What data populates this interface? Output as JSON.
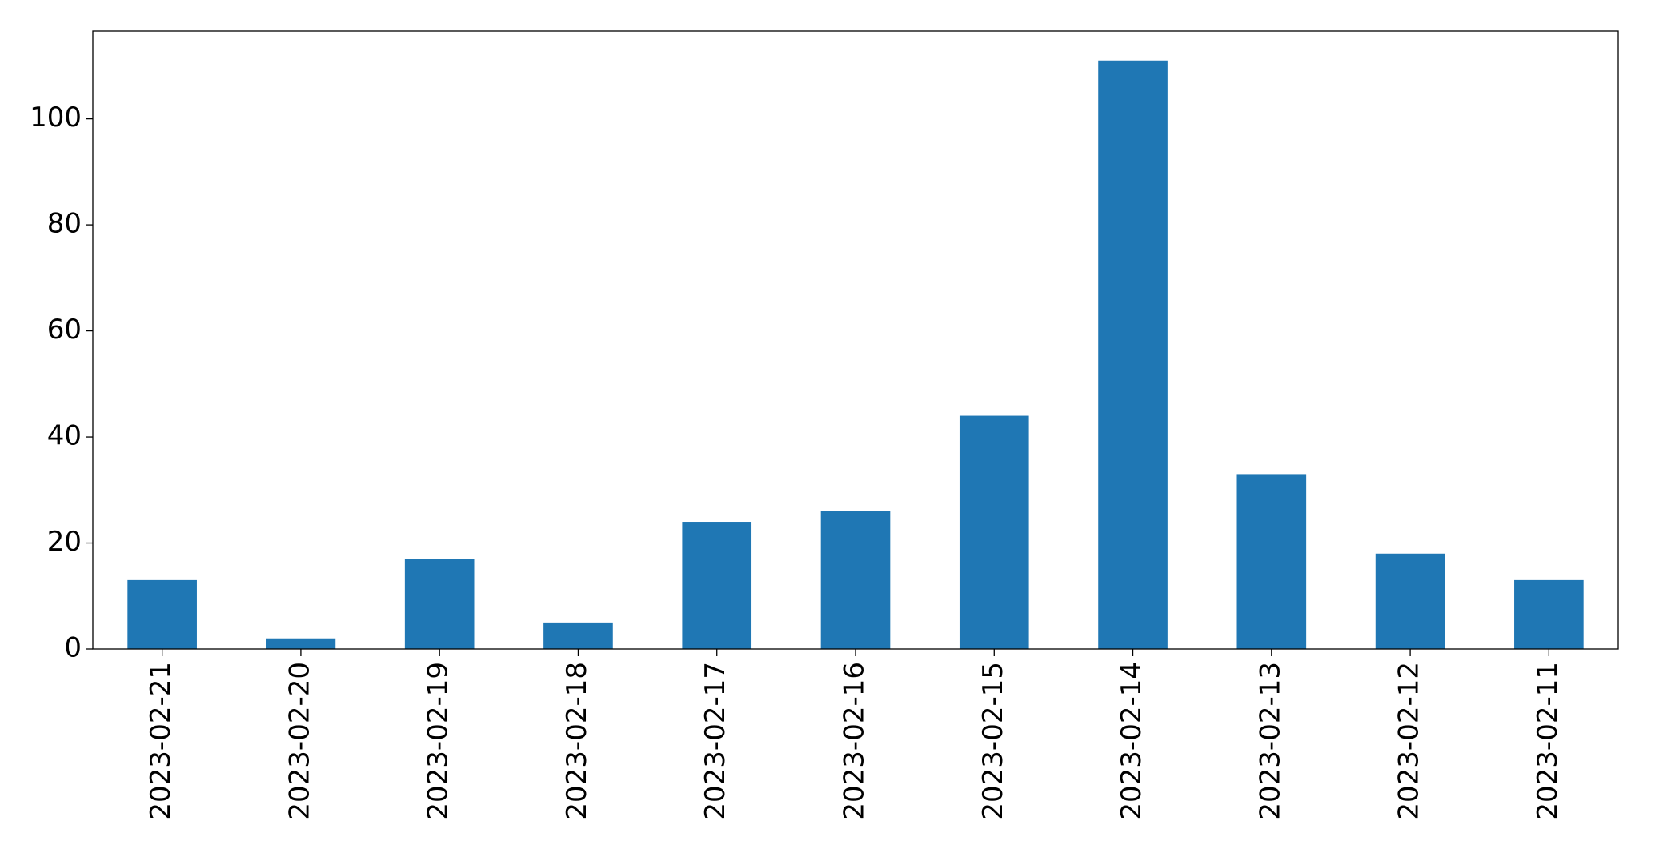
{
  "chart_data": {
    "type": "bar",
    "categories": [
      "2023-02-21",
      "2023-02-20",
      "2023-02-19",
      "2023-02-18",
      "2023-02-17",
      "2023-02-16",
      "2023-02-15",
      "2023-02-14",
      "2023-02-13",
      "2023-02-12",
      "2023-02-11"
    ],
    "values": [
      13,
      2,
      17,
      5,
      24,
      26,
      44,
      111,
      33,
      18,
      13
    ],
    "color": "#1f77b4",
    "ylim": [
      0,
      116.55
    ],
    "yticks": [
      0,
      20,
      40,
      60,
      80,
      100
    ],
    "grid": false
  }
}
